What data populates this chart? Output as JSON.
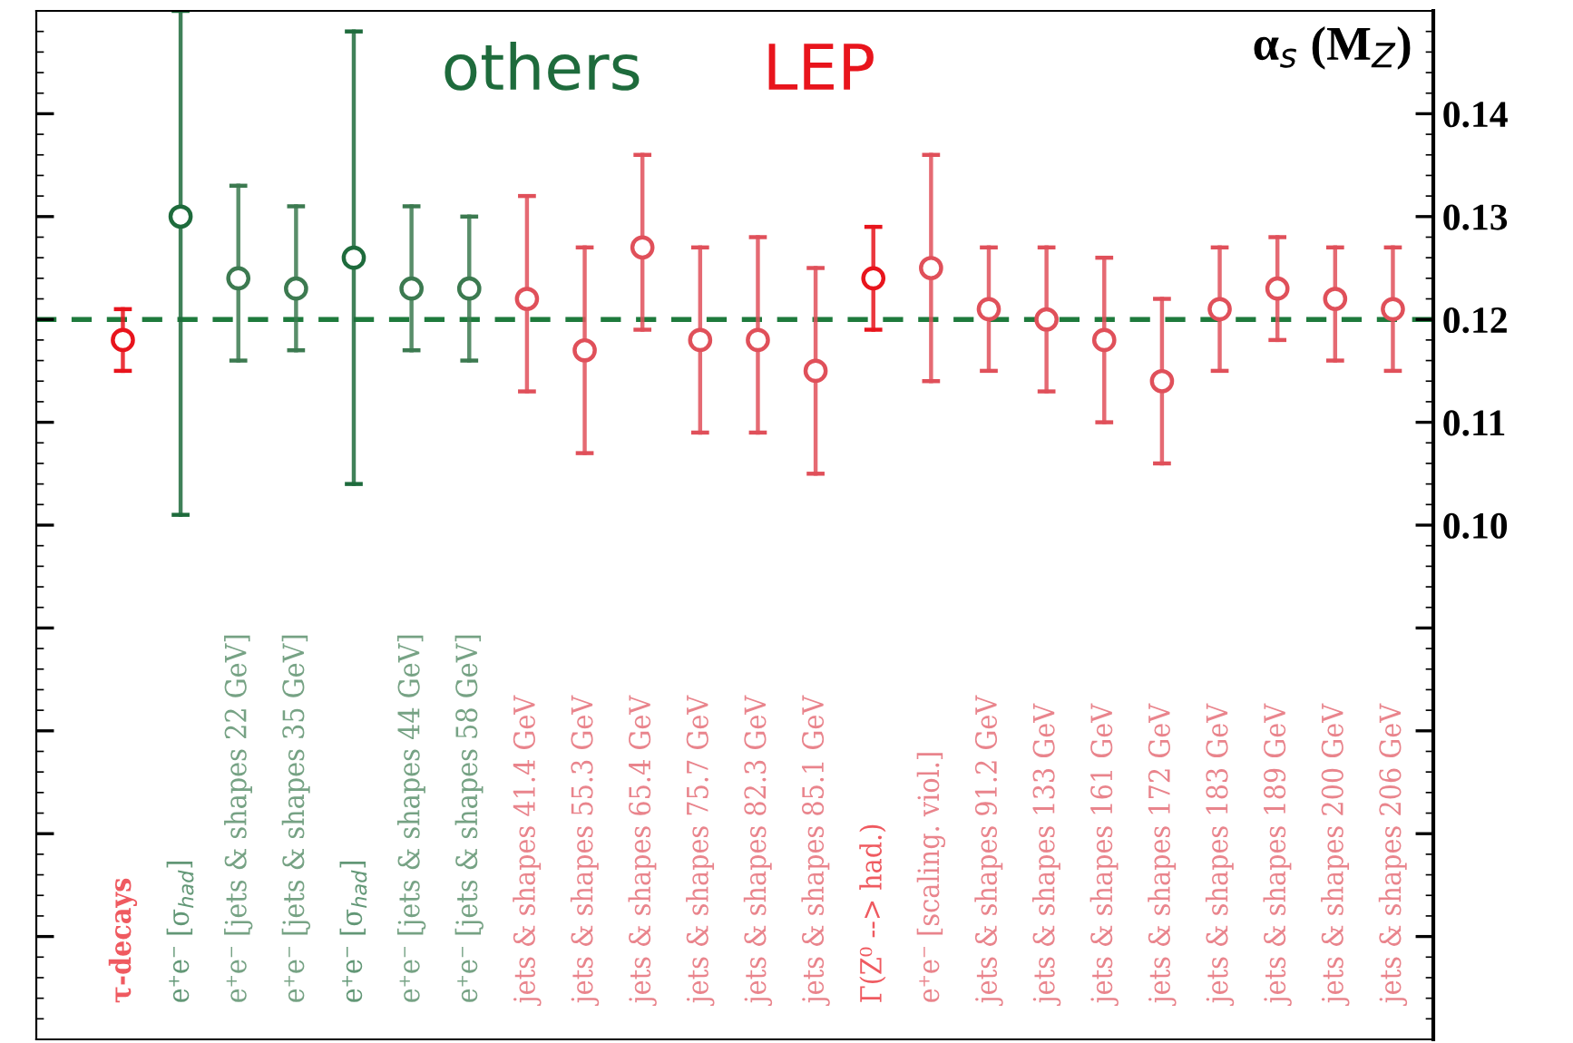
{
  "chart_data": {
    "type": "scatter",
    "ylabel": "α$_{s}$ (M$_{Z}$)",
    "categories": [
      "τ-decays",
      "e⁺e⁻ [σ$_{had}$]",
      "e⁺e⁻ [jets & shapes 22 GeV]",
      "e⁺e⁻ [jets & shapes 35 GeV]",
      "e⁺e⁻ [σ$_{had}$]",
      "e⁺e⁻ [jets & shapes 44 GeV]",
      "e⁺e⁻ [jets & shapes 58 GeV]",
      "jets & shapes 41.4 GeV",
      "jets & shapes 55.3 GeV",
      "jets & shapes 65.4 GeV",
      "jets & shapes 75.7 GeV",
      "jets & shapes 82.3 GeV",
      "jets & shapes 85.1 GeV",
      "Γ(Z⁰ --> had.)",
      "e⁺e⁻ [scaling. viol.]",
      "jets & shapes 91.2 GeV",
      "jets & shapes 133 GeV",
      "jets & shapes 161 GeV",
      "jets & shapes 172 GeV",
      "jets & shapes 183 GeV",
      "jets & shapes 189 GeV",
      "jets & shapes 200 GeV",
      "jets & shapes 206 GeV"
    ],
    "series": [
      {
        "color": "#e8141c",
        "values": [
          0.118,
          null,
          null,
          null,
          null,
          null,
          null,
          null,
          null,
          null,
          null,
          null,
          null,
          0.124,
          null,
          null,
          null,
          null,
          null,
          null,
          null,
          null,
          null
        ],
        "errors": [
          [
            0.115,
            0.121
          ],
          null,
          null,
          null,
          null,
          null,
          null,
          null,
          null,
          null,
          null,
          null,
          null,
          [
            0.119,
            0.129
          ],
          null,
          null,
          null,
          null,
          null,
          null,
          null,
          null,
          null
        ]
      },
      {
        "color": "#1e6b3c",
        "values": [
          null,
          0.13,
          null,
          null,
          0.126,
          null,
          null,
          null,
          null,
          null,
          null,
          null,
          null,
          null,
          null,
          null,
          null,
          null,
          null,
          null,
          null,
          null,
          null
        ],
        "errors": [
          null,
          [
            0.101,
            0.15
          ],
          null,
          null,
          [
            0.104,
            0.148
          ],
          null,
          null,
          null,
          null,
          null,
          null,
          null,
          null,
          null,
          null,
          null,
          null,
          null,
          null,
          null,
          null,
          null,
          null
        ]
      },
      {
        "color": "#3c7a50",
        "values": [
          null,
          null,
          0.124,
          0.123,
          null,
          0.123,
          0.123,
          null,
          null,
          null,
          null,
          null,
          null,
          null,
          null,
          null,
          null,
          null,
          null,
          null,
          null,
          null,
          null
        ],
        "errors": [
          null,
          null,
          [
            0.116,
            0.133
          ],
          [
            0.117,
            0.131
          ],
          null,
          [
            0.117,
            0.131
          ],
          [
            0.116,
            0.13
          ],
          null,
          null,
          null,
          null,
          null,
          null,
          null,
          null,
          null,
          null,
          null,
          null,
          null,
          null,
          null,
          null
        ]
      },
      {
        "color": "#e0505a",
        "values": [
          null,
          null,
          null,
          null,
          null,
          null,
          null,
          0.122,
          0.117,
          0.127,
          0.118,
          0.118,
          0.115,
          null,
          0.125,
          0.121,
          0.12,
          0.118,
          0.114,
          0.121,
          0.123,
          0.122,
          0.121
        ],
        "errors": [
          null,
          null,
          null,
          null,
          null,
          null,
          null,
          [
            0.113,
            0.132
          ],
          [
            0.107,
            0.127
          ],
          [
            0.119,
            0.136
          ],
          [
            0.109,
            0.127
          ],
          [
            0.109,
            0.128
          ],
          [
            0.105,
            0.125
          ],
          null,
          [
            0.114,
            0.136
          ],
          [
            0.115,
            0.127
          ],
          [
            0.113,
            0.127
          ],
          [
            0.11,
            0.126
          ],
          [
            0.106,
            0.122
          ],
          [
            0.115,
            0.127
          ],
          [
            0.118,
            0.128
          ],
          [
            0.116,
            0.127
          ],
          [
            0.115,
            0.127
          ]
        ]
      }
    ],
    "ylim": [
      0.05,
      0.15
    ],
    "yticks": [
      {
        "value": 0.06,
        "label": null
      },
      {
        "value": 0.07,
        "label": null
      },
      {
        "value": 0.08,
        "label": null
      },
      {
        "value": 0.09,
        "label": null
      },
      {
        "value": 0.1,
        "label": "0.10"
      },
      {
        "value": 0.11,
        "label": "0.11"
      },
      {
        "value": 0.12,
        "label": "0.12"
      },
      {
        "value": 0.13,
        "label": "0.13"
      },
      {
        "value": 0.14,
        "label": "0.14"
      }
    ],
    "ref_lines": [
      {
        "axis": "y",
        "value": 0.12,
        "color": "#1e7a3c",
        "line_style": "dashed"
      }
    ],
    "annotations": [
      "others",
      "LEP"
    ],
    "grid": false,
    "legend": false,
    "marker": "circle"
  }
}
